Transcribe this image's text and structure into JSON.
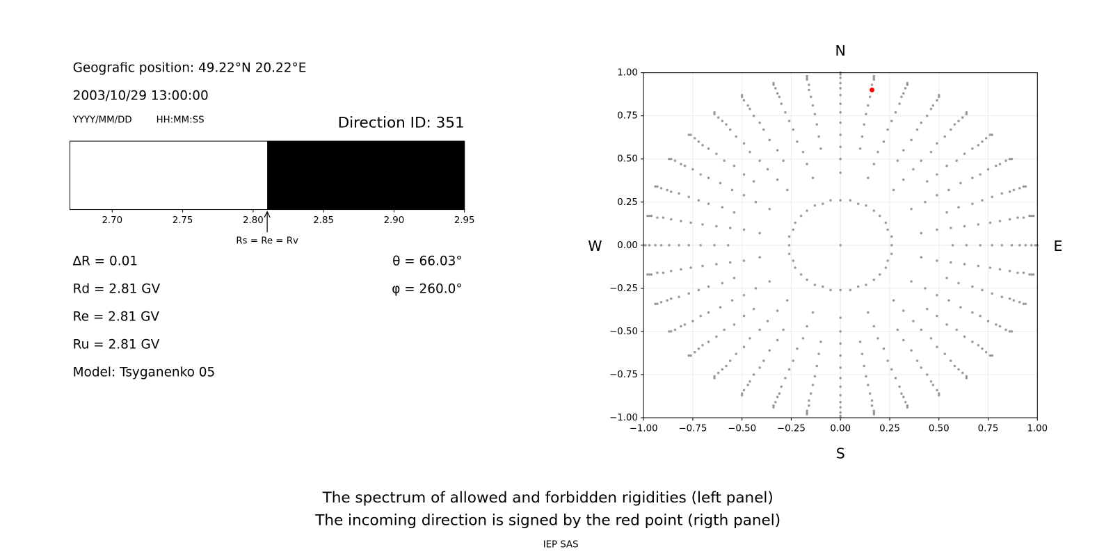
{
  "left_panel": {
    "position": "Geografic position: 49.22°N 20.22°E",
    "datetime": "2003/10/29 13:00:00",
    "date_format": "YYYY/MM/DD",
    "time_format": "HH:MM:SS",
    "direction_id": "Direction ID: 351",
    "spectrum": {
      "xlim": [
        2.67,
        2.95
      ],
      "xticks": [
        {
          "value": 2.7,
          "label": "2.70"
        },
        {
          "value": 2.75,
          "label": "2.75"
        },
        {
          "value": 2.8,
          "label": "2.80"
        },
        {
          "value": 2.85,
          "label": "2.85"
        },
        {
          "value": 2.9,
          "label": "2.90"
        },
        {
          "value": 2.95,
          "label": "2.95"
        }
      ],
      "bands": [
        {
          "start": 2.67,
          "end": 2.81,
          "color": "#ffffff"
        },
        {
          "start": 2.81,
          "end": 2.95,
          "color": "#000000"
        }
      ],
      "marker": {
        "value": 2.81,
        "label": "Rs = Re = Rv"
      }
    },
    "params_left": [
      "∆R = 0.01",
      "Rd = 2.81 GV",
      "Re = 2.81 GV",
      "Ru = 2.81 GV",
      "Model: Tsyganenko 05"
    ],
    "params_right": [
      "θ = 66.03°",
      "φ = 260.0°"
    ]
  },
  "chart_data": {
    "type": "scatter",
    "xlim": [
      -1,
      1
    ],
    "ylim": [
      -1,
      1
    ],
    "xticks": [
      {
        "value": -1,
        "label": "−1.00"
      },
      {
        "value": -0.75,
        "label": "−0.75"
      },
      {
        "value": -0.5,
        "label": "−0.50"
      },
      {
        "value": -0.25,
        "label": "−0.25"
      },
      {
        "value": 0,
        "label": "0.00"
      },
      {
        "value": 0.25,
        "label": "0.25"
      },
      {
        "value": 0.5,
        "label": "0.50"
      },
      {
        "value": 0.75,
        "label": "0.75"
      },
      {
        "value": 1,
        "label": "1.00"
      }
    ],
    "yticks": [
      {
        "value": -1,
        "label": "−1.00"
      },
      {
        "value": -0.75,
        "label": "−0.75"
      },
      {
        "value": -0.5,
        "label": "−0.50"
      },
      {
        "value": -0.25,
        "label": "−0.25"
      },
      {
        "value": 0,
        "label": "0.00"
      },
      {
        "value": 0.25,
        "label": "0.25"
      },
      {
        "value": 0.5,
        "label": "0.50"
      },
      {
        "value": 0.75,
        "label": "0.75"
      },
      {
        "value": 1,
        "label": "1.00"
      }
    ],
    "grid": true,
    "compass": {
      "top": "N",
      "bottom": "S",
      "left": "W",
      "right": "E"
    },
    "series": [
      {
        "color": "#999999",
        "x": [
          0,
          0,
          0.05,
          0.09,
          0.13,
          0.17,
          0.2,
          0.23,
          0.24,
          0.26,
          0.26,
          0.26,
          0.24,
          0.23,
          0.2,
          0.17,
          0.13,
          0.09,
          0.05,
          0,
          -0.05,
          -0.09,
          -0.13,
          -0.17,
          -0.2,
          -0.23,
          -0.24,
          -0.26,
          -0.26,
          -0.26,
          -0.24,
          -0.23,
          -0.2,
          -0.17,
          -0.13,
          -0.09,
          -0.05,
          0,
          0.14,
          0.27,
          0.36,
          0.41,
          0.41,
          0.36,
          0.27,
          0.14,
          0,
          -0.14,
          -0.27,
          -0.36,
          -0.41,
          -0.41,
          -0.36,
          -0.27,
          -0.14,
          0,
          0.17,
          0.32,
          0.43,
          0.49,
          0.49,
          0.43,
          0.32,
          0.17,
          0,
          -0.17,
          -0.32,
          -0.43,
          -0.49,
          -0.49,
          -0.43,
          -0.32,
          -0.17,
          0,
          0.1,
          0.19,
          0.29,
          0.37,
          0.44,
          0.49,
          0.54,
          0.56,
          0.57,
          0.56,
          0.54,
          0.49,
          0.44,
          0.37,
          0.29,
          0.19,
          0.1,
          0,
          -0.1,
          -0.19,
          -0.29,
          -0.37,
          -0.44,
          -0.49,
          -0.54,
          -0.56,
          -0.57,
          -0.56,
          -0.54,
          -0.49,
          -0.44,
          -0.37,
          -0.29,
          -0.19,
          -0.1,
          0,
          0.11,
          0.22,
          0.32,
          0.41,
          0.49,
          0.55,
          0.6,
          0.63,
          0.64,
          0.63,
          0.6,
          0.55,
          0.49,
          0.41,
          0.32,
          0.22,
          0.11,
          0,
          -0.11,
          -0.22,
          -0.32,
          -0.41,
          -0.49,
          -0.55,
          -0.6,
          -0.63,
          -0.64,
          -0.63,
          -0.6,
          -0.55,
          -0.49,
          -0.41,
          -0.32,
          -0.22,
          -0.11,
          0,
          0.12,
          0.24,
          0.36,
          0.46,
          0.54,
          0.61,
          0.67,
          0.7,
          0.71,
          0.7,
          0.67,
          0.61,
          0.54,
          0.46,
          0.36,
          0.24,
          0.12,
          0,
          -0.12,
          -0.24,
          -0.36,
          -0.46,
          -0.54,
          -0.61,
          -0.67,
          -0.7,
          -0.71,
          -0.7,
          -0.67,
          -0.61,
          -0.54,
          -0.46,
          -0.36,
          -0.24,
          -0.12,
          0,
          0.13,
          0.26,
          0.39,
          0.49,
          0.59,
          0.67,
          0.72,
          0.76,
          0.77,
          0.76,
          0.72,
          0.67,
          0.59,
          0.49,
          0.39,
          0.26,
          0.13,
          0,
          -0.13,
          -0.26,
          -0.39,
          -0.49,
          -0.59,
          -0.67,
          -0.72,
          -0.76,
          -0.77,
          -0.76,
          -0.72,
          -0.67,
          -0.59,
          -0.49,
          -0.39,
          -0.26,
          -0.13,
          0,
          0.14,
          0.28,
          0.41,
          0.53,
          0.63,
          0.71,
          0.77,
          0.81,
          0.82,
          0.81,
          0.77,
          0.71,
          0.63,
          0.53,
          0.41,
          0.28,
          0.14,
          0,
          -0.14,
          -0.28,
          -0.41,
          -0.53,
          -0.63,
          -0.71,
          -0.77,
          -0.81,
          -0.82,
          -0.81,
          -0.77,
          -0.71,
          -0.63,
          -0.53,
          -0.41,
          -0.28,
          -0.14,
          0,
          0.15,
          0.3,
          0.44,
          0.56,
          0.67,
          0.75,
          0.82,
          0.86,
          0.87,
          0.86,
          0.82,
          0.75,
          0.67,
          0.56,
          0.44,
          0.3,
          0.15,
          0,
          -0.15,
          -0.3,
          -0.44,
          -0.56,
          -0.67,
          -0.75,
          -0.82,
          -0.86,
          -0.87,
          -0.86,
          -0.82,
          -0.75,
          -0.67,
          -0.56,
          -0.44,
          -0.3,
          -0.15,
          0,
          0.16,
          0.31,
          0.46,
          0.58,
          0.7,
          0.79,
          0.86,
          0.9,
          0.91,
          0.9,
          0.86,
          0.79,
          0.7,
          0.58,
          0.46,
          0.31,
          0.16,
          0,
          -0.16,
          -0.31,
          -0.46,
          -0.58,
          -0.7,
          -0.79,
          -0.86,
          -0.9,
          -0.91,
          -0.9,
          -0.86,
          -0.79,
          -0.7,
          -0.58,
          -0.46,
          -0.31,
          -0.16,
          0,
          0.16,
          0.32,
          0.47,
          0.6,
          0.72,
          0.81,
          0.88,
          0.93,
          0.94,
          0.93,
          0.88,
          0.81,
          0.72,
          0.6,
          0.47,
          0.32,
          0.16,
          0,
          -0.16,
          -0.32,
          -0.47,
          -0.6,
          -0.72,
          -0.81,
          -0.88,
          -0.93,
          -0.94,
          -0.93,
          -0.88,
          -0.81,
          -0.72,
          -0.6,
          -0.47,
          -0.32,
          -0.16,
          0,
          0.17,
          0.33,
          0.49,
          0.62,
          0.74,
          0.84,
          0.91,
          0.96,
          0.97,
          0.96,
          0.91,
          0.84,
          0.74,
          0.62,
          0.49,
          0.33,
          0.17,
          0,
          -0.17,
          -0.33,
          -0.49,
          -0.62,
          -0.74,
          -0.84,
          -0.91,
          -0.96,
          -0.97,
          -0.96,
          -0.91,
          -0.84,
          -0.74,
          -0.62,
          -0.49,
          -0.33,
          -0.17,
          0,
          0.17,
          0.34,
          0.5,
          0.64,
          0.76,
          0.86,
          0.93,
          0.97,
          0.99,
          0.97,
          0.93,
          0.86,
          0.76,
          0.64,
          0.5,
          0.34,
          0.17,
          0,
          -0.17,
          -0.34,
          -0.5,
          -0.64,
          -0.76,
          -0.86,
          -0.93,
          -0.97,
          -0.99,
          -0.97,
          -0.93,
          -0.86,
          -0.76,
          -0.64,
          -0.5,
          -0.34,
          -0.17,
          0,
          0.17,
          0.34,
          0.5,
          0.64,
          0.77,
          0.87,
          0.94,
          0.98,
          1,
          0.98,
          0.94,
          0.87,
          0.77,
          0.64,
          0.5,
          0.34,
          0.17,
          0,
          -0.17,
          -0.34,
          -0.5,
          -0.64,
          -0.77,
          -0.87,
          -0.94,
          -0.98,
          -1,
          -0.98,
          -0.94,
          -0.87,
          -0.77,
          -0.64,
          -0.5,
          -0.34,
          -0.17
        ],
        "y": [
          0,
          0.26,
          0.26,
          0.24,
          0.23,
          0.2,
          0.17,
          0.13,
          0.09,
          0.05,
          0,
          -0.05,
          -0.09,
          -0.13,
          -0.17,
          -0.2,
          -0.23,
          -0.24,
          -0.26,
          -0.26,
          -0.26,
          -0.24,
          -0.23,
          -0.2,
          -0.17,
          -0.13,
          -0.09,
          -0.05,
          0,
          0.05,
          0.09,
          0.13,
          0.17,
          0.2,
          0.23,
          0.24,
          0.26,
          0.42,
          0.39,
          0.32,
          0.21,
          0.07,
          -0.07,
          -0.21,
          -0.32,
          -0.39,
          -0.42,
          -0.39,
          -0.32,
          -0.21,
          -0.07,
          0.07,
          0.21,
          0.32,
          0.39,
          0.5,
          0.47,
          0.38,
          0.25,
          0.09,
          -0.09,
          -0.25,
          -0.38,
          -0.47,
          -0.5,
          -0.47,
          -0.38,
          -0.25,
          -0.09,
          0.09,
          0.25,
          0.38,
          0.47,
          0.57,
          0.56,
          0.54,
          0.49,
          0.44,
          0.37,
          0.29,
          0.19,
          0.1,
          0,
          -0.1,
          -0.19,
          -0.29,
          -0.37,
          -0.44,
          -0.49,
          -0.54,
          -0.56,
          -0.57,
          -0.56,
          -0.54,
          -0.49,
          -0.44,
          -0.37,
          -0.29,
          -0.19,
          -0.1,
          0,
          0.1,
          0.19,
          0.29,
          0.37,
          0.44,
          0.49,
          0.54,
          0.56,
          0.64,
          0.63,
          0.6,
          0.55,
          0.49,
          0.41,
          0.32,
          0.22,
          0.11,
          0,
          -0.11,
          -0.22,
          -0.32,
          -0.41,
          -0.49,
          -0.55,
          -0.6,
          -0.63,
          -0.64,
          -0.63,
          -0.6,
          -0.55,
          -0.49,
          -0.41,
          -0.32,
          -0.22,
          -0.11,
          0,
          0.11,
          0.22,
          0.32,
          0.41,
          0.49,
          0.55,
          0.6,
          0.63,
          0.71,
          0.7,
          0.67,
          0.61,
          0.54,
          0.46,
          0.36,
          0.24,
          0.12,
          0,
          -0.12,
          -0.24,
          -0.36,
          -0.46,
          -0.54,
          -0.61,
          -0.67,
          -0.7,
          -0.71,
          -0.7,
          -0.67,
          -0.61,
          -0.54,
          -0.46,
          -0.36,
          -0.24,
          -0.12,
          0,
          0.12,
          0.24,
          0.36,
          0.46,
          0.54,
          0.61,
          0.67,
          0.7,
          0.77,
          0.76,
          0.72,
          0.67,
          0.59,
          0.49,
          0.39,
          0.26,
          0.13,
          0,
          -0.13,
          -0.26,
          -0.39,
          -0.49,
          -0.59,
          -0.67,
          -0.72,
          -0.76,
          -0.77,
          -0.76,
          -0.72,
          -0.67,
          -0.59,
          -0.49,
          -0.39,
          -0.26,
          -0.13,
          0,
          0.13,
          0.26,
          0.39,
          0.49,
          0.59,
          0.67,
          0.72,
          0.76,
          0.82,
          0.81,
          0.77,
          0.71,
          0.63,
          0.53,
          0.41,
          0.28,
          0.14,
          0,
          -0.14,
          -0.28,
          -0.41,
          -0.53,
          -0.63,
          -0.71,
          -0.77,
          -0.81,
          -0.82,
          -0.81,
          -0.77,
          -0.71,
          -0.63,
          -0.53,
          -0.41,
          -0.28,
          -0.14,
          0,
          0.14,
          0.28,
          0.41,
          0.53,
          0.63,
          0.71,
          0.77,
          0.81,
          0.87,
          0.86,
          0.82,
          0.75,
          0.67,
          0.56,
          0.44,
          0.3,
          0.15,
          0,
          -0.15,
          -0.3,
          -0.44,
          -0.56,
          -0.67,
          -0.75,
          -0.82,
          -0.86,
          -0.87,
          -0.86,
          -0.82,
          -0.75,
          -0.67,
          -0.56,
          -0.44,
          -0.3,
          -0.15,
          0,
          0.15,
          0.3,
          0.44,
          0.56,
          0.67,
          0.75,
          0.82,
          0.86,
          0.91,
          0.9,
          0.86,
          0.79,
          0.7,
          0.58,
          0.46,
          0.31,
          0.16,
          0,
          -0.16,
          -0.31,
          -0.46,
          -0.58,
          -0.7,
          -0.79,
          -0.86,
          -0.9,
          -0.91,
          -0.9,
          -0.86,
          -0.79,
          -0.7,
          -0.58,
          -0.46,
          -0.31,
          -0.16,
          0,
          0.16,
          0.31,
          0.46,
          0.58,
          0.7,
          0.79,
          0.86,
          0.9,
          0.94,
          0.93,
          0.88,
          0.81,
          0.72,
          0.6,
          0.47,
          0.32,
          0.16,
          0,
          -0.16,
          -0.32,
          -0.47,
          -0.6,
          -0.72,
          -0.81,
          -0.88,
          -0.93,
          -0.94,
          -0.93,
          -0.88,
          -0.81,
          -0.72,
          -0.6,
          -0.47,
          -0.32,
          -0.16,
          0,
          0.16,
          0.32,
          0.47,
          0.6,
          0.72,
          0.81,
          0.88,
          0.93,
          0.97,
          0.96,
          0.91,
          0.84,
          0.74,
          0.62,
          0.49,
          0.33,
          0.17,
          0,
          -0.17,
          -0.33,
          -0.49,
          -0.62,
          -0.74,
          -0.84,
          -0.91,
          -0.96,
          -0.97,
          -0.96,
          -0.91,
          -0.84,
          -0.74,
          -0.62,
          -0.49,
          -0.33,
          -0.17,
          0,
          0.17,
          0.33,
          0.49,
          0.62,
          0.74,
          0.84,
          0.91,
          0.96,
          0.99,
          0.97,
          0.93,
          0.86,
          0.76,
          0.64,
          0.5,
          0.34,
          0.17,
          0,
          -0.17,
          -0.34,
          -0.5,
          -0.64,
          -0.76,
          -0.86,
          -0.93,
          -0.97,
          -0.99,
          -0.97,
          -0.93,
          -0.86,
          -0.76,
          -0.64,
          -0.5,
          -0.34,
          -0.17,
          0,
          0.17,
          0.34,
          0.5,
          0.64,
          0.76,
          0.86,
          0.93,
          0.97,
          1,
          0.98,
          0.94,
          0.87,
          0.77,
          0.64,
          0.5,
          0.34,
          0.17,
          0,
          -0.17,
          -0.34,
          -0.5,
          -0.64,
          -0.77,
          -0.87,
          -0.94,
          -0.98,
          -1,
          -0.98,
          -0.94,
          -0.87,
          -0.77,
          -0.64,
          -0.5,
          -0.34,
          -0.17,
          0,
          0.17,
          0.34,
          0.5,
          0.64,
          0.77,
          0.87,
          0.94,
          0.98
        ]
      },
      {
        "color": "#ff0000",
        "x": [
          0.16
        ],
        "y": [
          0.9
        ]
      }
    ]
  },
  "caption": {
    "lines": [
      "The spectrum of allowed and forbidden rigidities (left panel)",
      "The incoming direction is signed by the red point (rigth panel)"
    ],
    "footer": "IEP SAS"
  }
}
